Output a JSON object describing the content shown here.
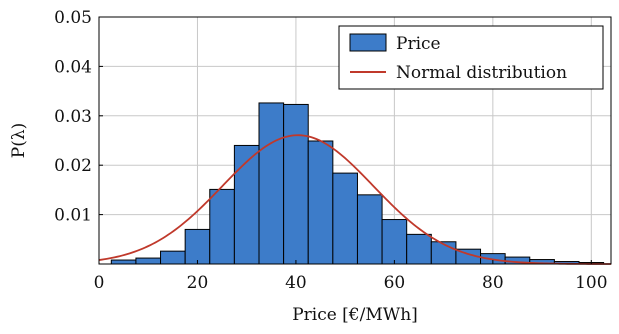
{
  "chart_data": {
    "type": "bar",
    "xlabel": "Price [€/MWh]",
    "ylabel": "P(λ)",
    "xlim": [
      0,
      104
    ],
    "ylim": [
      0,
      0.05
    ],
    "xticks": [
      0,
      20,
      40,
      60,
      80,
      100
    ],
    "xtick_labels": [
      "0",
      "20",
      "40",
      "60",
      "80",
      "100"
    ],
    "yticks": [
      0.01,
      0.02,
      0.03,
      0.04,
      0.05
    ],
    "ytick_labels": [
      "0.01",
      "0.02",
      "0.03",
      "0.04",
      "0.05"
    ],
    "grid": true,
    "legend_position": "top-right",
    "bin_width": 5,
    "bins": [
      {
        "start": 2.5,
        "value": 0.0008
      },
      {
        "start": 7.5,
        "value": 0.0012
      },
      {
        "start": 12.5,
        "value": 0.0026
      },
      {
        "start": 17.5,
        "value": 0.007
      },
      {
        "start": 22.5,
        "value": 0.0151
      },
      {
        "start": 27.5,
        "value": 0.024
      },
      {
        "start": 32.5,
        "value": 0.0326
      },
      {
        "start": 37.5,
        "value": 0.0323
      },
      {
        "start": 42.5,
        "value": 0.0249
      },
      {
        "start": 47.5,
        "value": 0.0184
      },
      {
        "start": 52.5,
        "value": 0.014
      },
      {
        "start": 57.5,
        "value": 0.009
      },
      {
        "start": 62.5,
        "value": 0.006
      },
      {
        "start": 67.5,
        "value": 0.0045
      },
      {
        "start": 72.5,
        "value": 0.003
      },
      {
        "start": 77.5,
        "value": 0.0021
      },
      {
        "start": 82.5,
        "value": 0.0014
      },
      {
        "start": 87.5,
        "value": 0.0009
      },
      {
        "start": 92.5,
        "value": 0.0005
      },
      {
        "start": 97.5,
        "value": 0.0003
      }
    ],
    "series": [
      {
        "name": "Price",
        "kind": "histogram",
        "color": "#3d7cc9",
        "edge_color": "#000000"
      },
      {
        "name": "Normal distribution",
        "kind": "line",
        "color": "#c0392b",
        "mean": 40.4,
        "std": 15.3
      }
    ]
  }
}
